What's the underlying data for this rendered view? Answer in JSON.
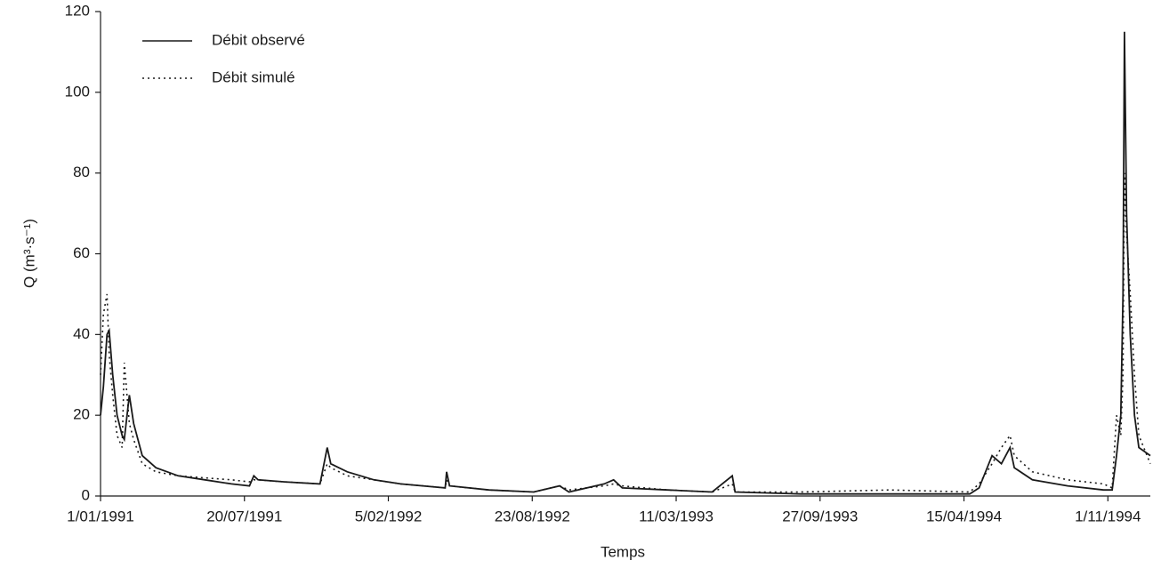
{
  "chart_data": {
    "type": "line",
    "x_label": "Temps",
    "y_label": "Q (m³·s⁻¹)",
    "x": [
      "1/01/1991",
      "5/01/1991",
      "10/01/1991",
      "13/01/1991",
      "18/01/1991",
      "24/01/1991",
      "31/01/1991",
      "3/02/1991",
      "10/02/1991",
      "16/02/1991",
      "28/02/1991",
      "19/03/1991",
      "19/04/1991",
      "26/05/1991",
      "2/07/1991",
      "27/07/1991",
      "2/08/1991",
      "8/08/1991",
      "14/09/1991",
      "2/11/1991",
      "12/11/1991",
      "17/11/1991",
      "10/12/1991",
      "16/01/1992",
      "22/02/1992",
      "24/04/1992",
      "26/04/1992",
      "30/04/1992",
      "24/06/1992",
      "25/08/1992",
      "30/09/1992",
      "13/10/1992",
      "1/12/1992",
      "14/12/1992",
      "26/12/1992",
      "27/02/1993",
      "30/04/1993",
      "28/05/1993",
      "1/06/1993",
      "31/08/1993",
      "2/01/1994",
      "23/04/1994",
      "6/05/1994",
      "24/05/1994",
      "6/06/1994",
      "18/06/1994",
      "24/06/1994",
      "19/07/1994",
      "6/09/1994",
      "26/10/1994",
      "7/11/1994",
      "13/11/1994",
      "19/11/1994",
      "22/11/1994",
      "24/11/1994",
      "27/11/1994",
      "2/12/1994",
      "8/12/1994",
      "14/12/1994",
      "30/12/1994"
    ],
    "series": [
      {
        "name": "Débit observé",
        "color": "#1a1a1a",
        "dash": "solid",
        "values": [
          20,
          27,
          40,
          41,
          30,
          20,
          15,
          14,
          25,
          18,
          10,
          7,
          5,
          4,
          3,
          2.5,
          5,
          4,
          3.5,
          3,
          12,
          8,
          6,
          4,
          3,
          2,
          6,
          2.5,
          1.5,
          1,
          2.5,
          1,
          3,
          4,
          2,
          1.5,
          1,
          5,
          1,
          0.5,
          0.5,
          0.5,
          2,
          10,
          8,
          12,
          7,
          4,
          2.5,
          1.5,
          1.5,
          10,
          20,
          50,
          115,
          70,
          40,
          20,
          12,
          10
        ]
      },
      {
        "name": "Débit simulé",
        "color": "#1a1a1a",
        "dash": "dotted",
        "values": [
          30,
          45,
          50,
          35,
          25,
          15,
          12,
          33,
          18,
          14,
          8,
          6,
          5,
          4.5,
          4,
          3.5,
          4,
          4,
          3.5,
          3,
          8,
          7,
          5,
          4,
          3,
          2,
          4,
          2.5,
          1.5,
          1,
          2.5,
          1.5,
          2.5,
          3,
          2.5,
          1.5,
          1,
          3,
          1,
          1,
          1.5,
          1,
          3,
          8,
          12,
          15,
          10,
          6,
          4,
          3,
          2,
          20,
          15,
          30,
          80,
          65,
          50,
          30,
          15,
          8
        ]
      }
    ],
    "xlim": [
      "1/01/1991",
      "30/12/1994"
    ],
    "xticks": [
      "1/01/1991",
      "20/07/1991",
      "5/02/1992",
      "23/08/1992",
      "11/03/1993",
      "27/09/1993",
      "15/04/1994",
      "1/11/1994"
    ],
    "ylim": [
      0,
      120
    ],
    "yticks": [
      0,
      20,
      40,
      60,
      80,
      100,
      120
    ],
    "grid": false,
    "legend": "top-left"
  }
}
